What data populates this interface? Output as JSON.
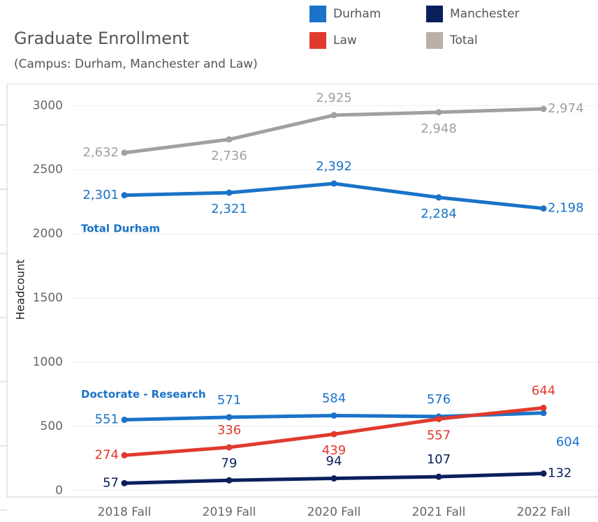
{
  "chart_data": {
    "type": "line",
    "title": "Graduate Enrollment",
    "subtitle": "(Campus: Durham, Manchester and Law)",
    "y_label": "Headcount",
    "legend": [
      {
        "name": "Durham",
        "color": "#1a73c9"
      },
      {
        "name": "Manchester",
        "color": "#0b1f5c"
      },
      {
        "name": "Law",
        "color": "#e03a2e"
      },
      {
        "name": "Total",
        "color": "#b9b0a8"
      }
    ],
    "categories": [
      "2018 Fall",
      "2019 Fall",
      "2020 Fall",
      "2021 Fall",
      "2022 Fall"
    ],
    "series": [
      {
        "color": "#a0a0a0",
        "values": [
          2632,
          2736,
          2925,
          2948,
          2974
        ],
        "value_labels": [
          "2,632",
          "2,736",
          "2,925",
          "2,948",
          "2,974"
        ]
      },
      {
        "name": "Total Durham",
        "color": "#1a73c9",
        "values": [
          2301,
          2321,
          2392,
          2284,
          2198
        ],
        "value_labels": [
          "2,301",
          "2,321",
          "2,392",
          "2,284",
          "2,198"
        ]
      },
      {
        "name": "Doctorate - Research",
        "color": "#1a73c9",
        "values": [
          551,
          571,
          584,
          576,
          604
        ]
      },
      {
        "color": "#e03a2e",
        "values": [
          274,
          336,
          439,
          557,
          644
        ]
      },
      {
        "color": "#0b1f5c",
        "values": [
          57,
          79,
          94,
          107,
          132
        ]
      }
    ],
    "ylim": [
      -50,
      3170
    ],
    "yticks": [
      0,
      500,
      1000,
      1500,
      2000,
      2500,
      3000
    ],
    "grid": true
  }
}
